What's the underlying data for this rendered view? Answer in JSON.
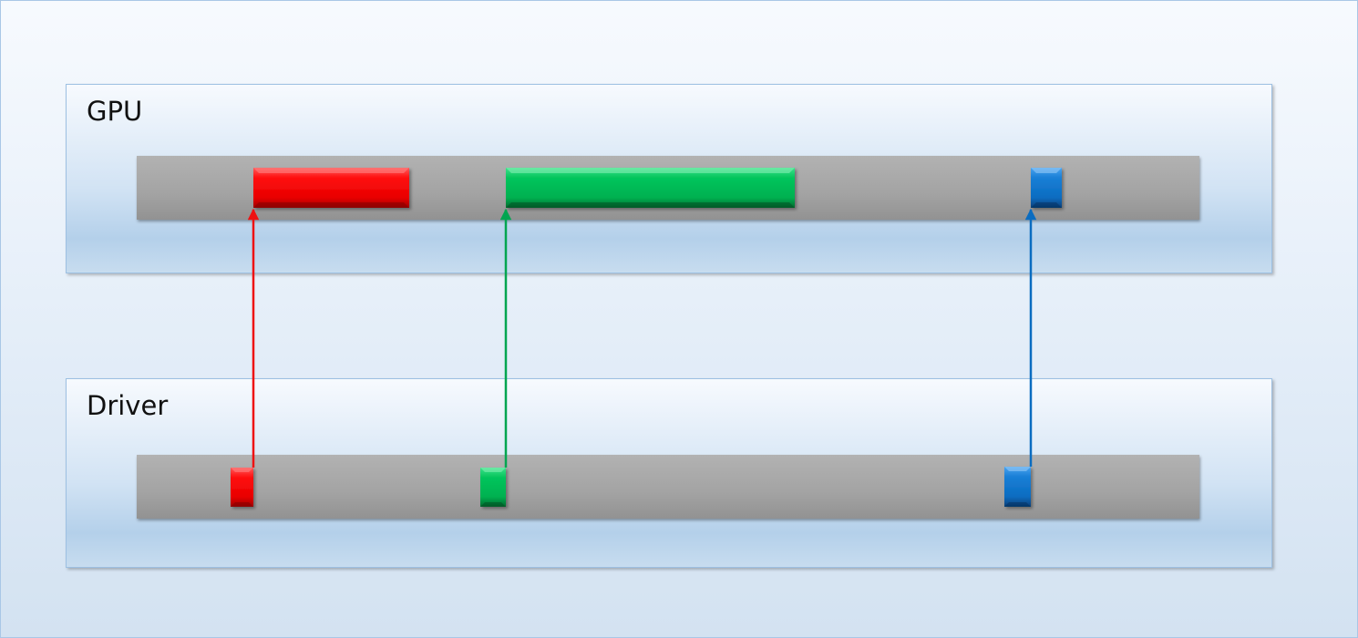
{
  "lanes": {
    "gpu": {
      "title": "GPU"
    },
    "driver": {
      "title": "Driver"
    }
  },
  "colors": {
    "red": "#ee1111",
    "green": "#00a550",
    "blue": "#0a6cc0"
  },
  "events": [
    {
      "id": "red",
      "color_key": "red"
    },
    {
      "id": "green",
      "color_key": "green"
    },
    {
      "id": "blue",
      "color_key": "blue"
    }
  ]
}
